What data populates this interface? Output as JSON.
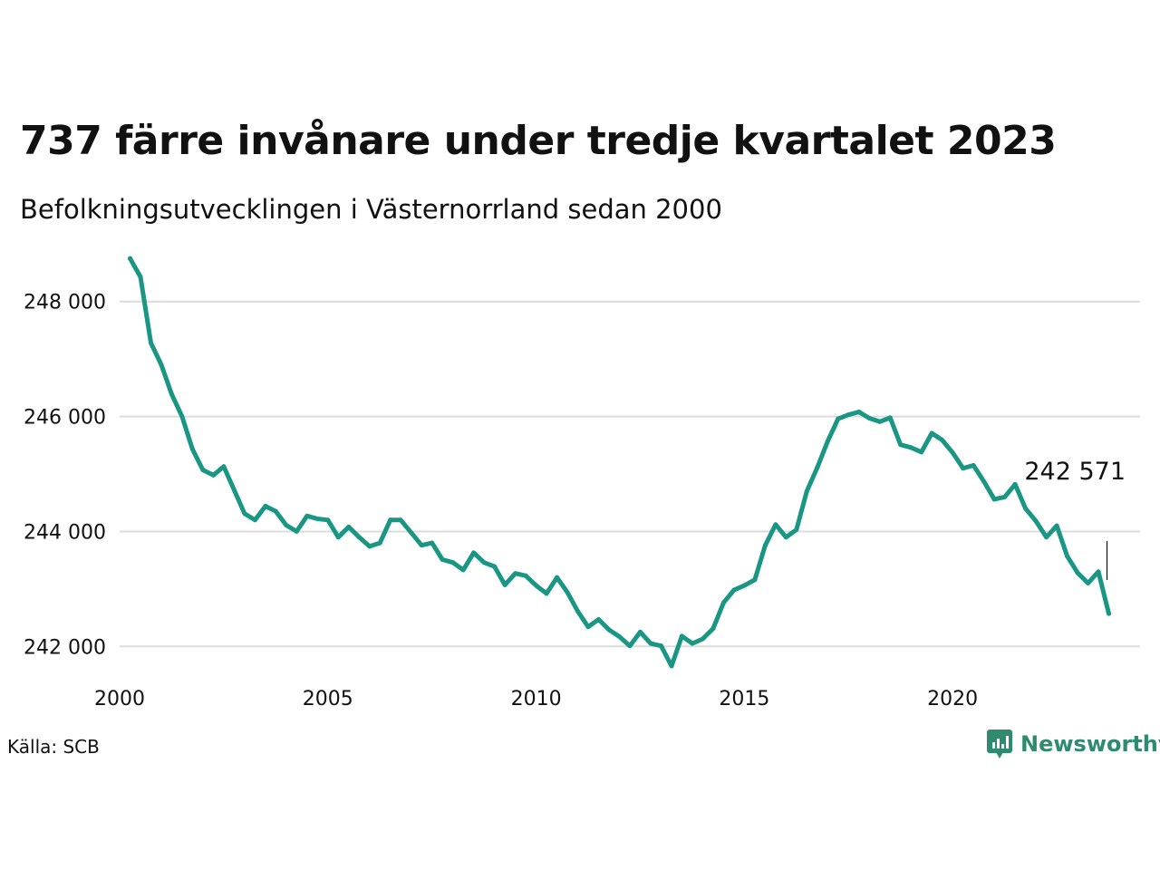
{
  "header": {
    "title": "737 färre invånare under tredje kvartalet 2023",
    "subtitle": "Befolkningsutvecklingen i Västernorrland sedan 2000"
  },
  "footer": {
    "source": "Källa: SCB",
    "brand": "Newsworthy",
    "brand_icon": "bar-chart-speech-bubble-icon"
  },
  "colors": {
    "line": "#1a9685",
    "grid": "#dcdcdc",
    "text": "#111111",
    "brand": "#2e8b6e"
  },
  "chart_data": {
    "type": "line",
    "title": "737 färre invånare under tredje kvartalet 2023",
    "subtitle": "Befolkningsutvecklingen i Västernorrland sedan 2000",
    "xlabel": "",
    "ylabel": "",
    "x_ticks": [
      2000,
      2005,
      2010,
      2015,
      2020
    ],
    "x_tick_labels": [
      "2000",
      "2005",
      "2010",
      "2015",
      "2020"
    ],
    "y_ticks": [
      242000,
      244000,
      246000,
      248000
    ],
    "y_tick_labels": [
      "242 000",
      "244 000",
      "246 000",
      "248 000"
    ],
    "xlim": [
      2000.0,
      2024.5
    ],
    "ylim": [
      241500,
      248800
    ],
    "grid": "horizontal",
    "annotation": {
      "x": 2023.75,
      "y": 242571,
      "label": "242 571"
    },
    "series": [
      {
        "x": [
          2000.25,
          2000.5,
          2000.75,
          2001.0,
          2001.25,
          2001.5,
          2001.75,
          2002.0,
          2002.25,
          2002.5,
          2002.75,
          2003.0,
          2003.25,
          2003.5,
          2003.75,
          2004.0,
          2004.25,
          2004.5,
          2004.75,
          2005.0,
          2005.25,
          2005.5,
          2005.75,
          2006.0,
          2006.25,
          2006.5,
          2006.75,
          2007.0,
          2007.25,
          2007.5,
          2007.75,
          2008.0,
          2008.25,
          2008.5,
          2008.75,
          2009.0,
          2009.25,
          2009.5,
          2009.75,
          2010.0,
          2010.25,
          2010.5,
          2010.75,
          2011.0,
          2011.25,
          2011.5,
          2011.75,
          2012.0,
          2012.25,
          2012.5,
          2012.75,
          2013.0,
          2013.25,
          2013.5,
          2013.75,
          2014.0,
          2014.25,
          2014.5,
          2014.75,
          2015.0,
          2015.25,
          2015.5,
          2015.75,
          2016.0,
          2016.25,
          2016.5,
          2016.75,
          2017.0,
          2017.25,
          2017.5,
          2017.75,
          2018.0,
          2018.25,
          2018.5,
          2018.75,
          2019.0,
          2019.25,
          2019.5,
          2019.75,
          2020.0,
          2020.25,
          2020.5,
          2020.75,
          2021.0,
          2021.25,
          2021.5,
          2021.75,
          2022.0,
          2022.25,
          2022.5,
          2022.75,
          2023.0,
          2023.25,
          2023.5,
          2023.75
        ],
        "values": [
          248750,
          248430,
          247280,
          246900,
          246390,
          246000,
          245430,
          245070,
          244980,
          245130,
          244720,
          244310,
          244200,
          244440,
          244350,
          244110,
          244000,
          244270,
          244220,
          244200,
          243900,
          244080,
          243900,
          243740,
          243800,
          244200,
          244200,
          243980,
          243760,
          243800,
          243510,
          243460,
          243330,
          243630,
          243460,
          243390,
          243070,
          243270,
          243230,
          243060,
          242920,
          243200,
          242940,
          242610,
          242340,
          242470,
          242290,
          242170,
          242010,
          242250,
          242050,
          242010,
          241660,
          242180,
          242050,
          242130,
          242310,
          242760,
          242980,
          243060,
          243160,
          243760,
          244120,
          243900,
          244030,
          244700,
          245110,
          245570,
          245960,
          246030,
          246080,
          245970,
          245910,
          245980,
          245510,
          245460,
          245380,
          245710,
          245590,
          245370,
          245100,
          245150,
          244870,
          244560,
          244600,
          244820,
          244400,
          244180,
          243900,
          244100,
          243570,
          243280,
          243100,
          243300,
          242571
        ]
      }
    ]
  }
}
